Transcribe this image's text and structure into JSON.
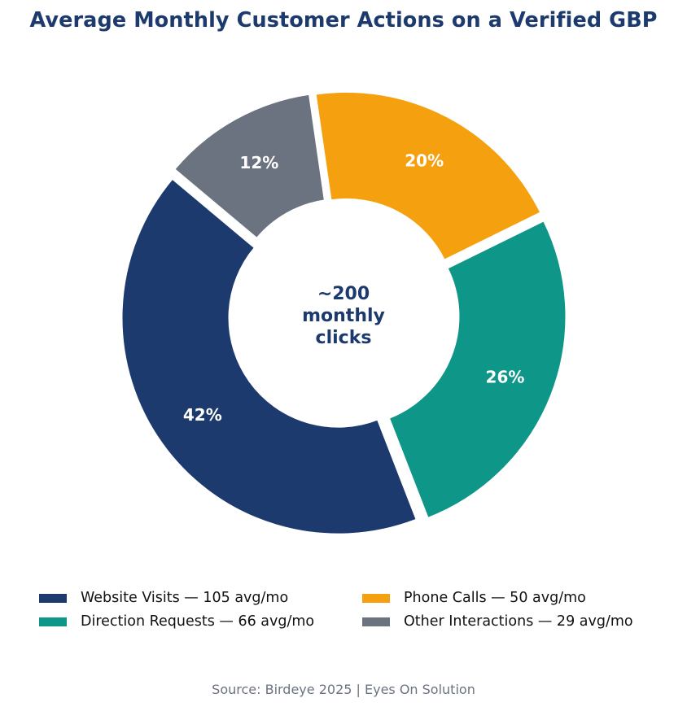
{
  "chart_data": {
    "type": "pie",
    "title": "Average Monthly Customer Actions on a Verified GBP",
    "center_label": [
      "~200",
      "monthly",
      "clicks"
    ],
    "slices": [
      {
        "name": "Website Visits",
        "value": 105,
        "percent_label": "42%",
        "legend_label": "Website Visits — 105 avg/mo",
        "color": "#1c3a6e"
      },
      {
        "name": "Direction Requests",
        "value": 66,
        "percent_label": "26%",
        "legend_label": "Direction Requests — 66 avg/mo",
        "color": "#0e9688"
      },
      {
        "name": "Phone Calls",
        "value": 50,
        "percent_label": "20%",
        "legend_label": "Phone Calls — 50 avg/mo",
        "color": "#f4a00f"
      },
      {
        "name": "Other Interactions",
        "value": 29,
        "percent_label": "12%",
        "legend_label": "Other Interactions — 29 avg/mo",
        "color": "#6b7280"
      }
    ],
    "donut": true,
    "exploded": true,
    "legend_position": "bottom",
    "source": "Source: Birdeye 2025 | Eyes On Solution"
  }
}
